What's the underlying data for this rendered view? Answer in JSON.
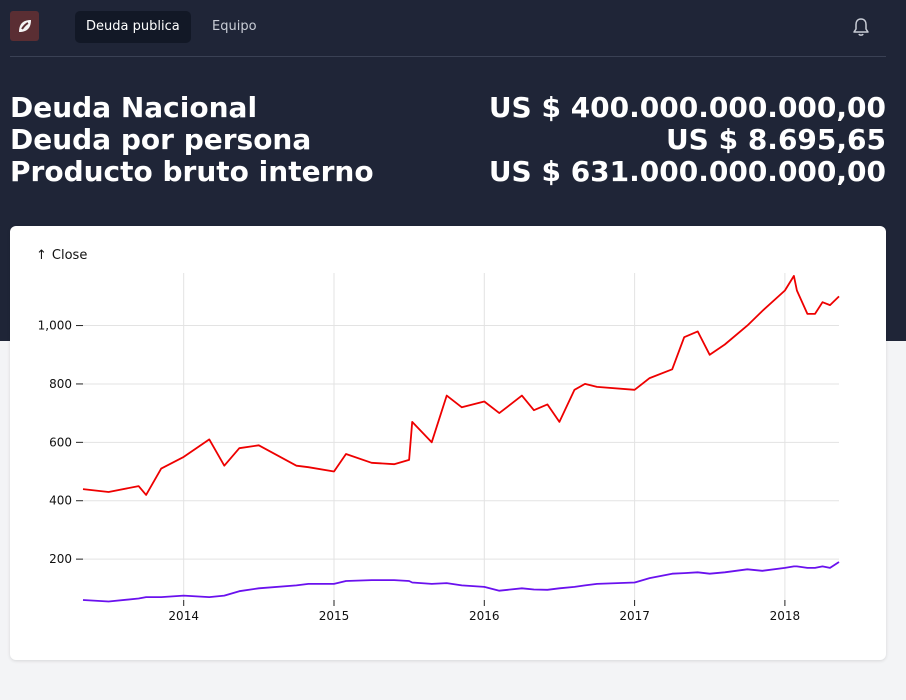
{
  "nav": {
    "logo_icon": "leaf-logo-icon",
    "tabs": [
      {
        "label": "Deuda publica",
        "active": true
      },
      {
        "label": "Equipo",
        "active": false
      }
    ],
    "notification_icon": "bell-icon"
  },
  "stats": [
    {
      "label": "Deuda Nacional",
      "value": "US $ 400.000.000.000,00"
    },
    {
      "label": "Deuda por persona",
      "value": "US $ 8.695,65"
    },
    {
      "label": "Producto bruto interno",
      "value": "US $ 631.000.000.000,00"
    }
  ],
  "colors": {
    "header_bg": "#1f2537",
    "series_1": "#ee0000",
    "series_2": "#6a11ee"
  },
  "chart_card": {
    "close_icon": "arrow-up-icon",
    "close_label": "Close"
  },
  "chart_data": {
    "type": "line",
    "title": "",
    "xlabel": "",
    "ylabel": "Close",
    "xlim": [
      2013.33,
      2018.36
    ],
    "ylim": [
      60,
      1180
    ],
    "x_ticks": [
      2014,
      2015,
      2016,
      2017,
      2018
    ],
    "x_tick_labels": [
      "2014",
      "2015",
      "2016",
      "2017",
      "2018"
    ],
    "y_ticks": [
      200,
      400,
      600,
      800,
      1000
    ],
    "y_tick_labels": [
      "200",
      "400",
      "600",
      "800",
      "1,000"
    ],
    "grid": true,
    "x": [
      2013.33,
      2013.5,
      2013.7,
      2013.75,
      2013.85,
      2014.0,
      2014.17,
      2014.27,
      2014.37,
      2014.5,
      2014.75,
      2014.83,
      2015.0,
      2015.08,
      2015.25,
      2015.4,
      2015.5,
      2015.52,
      2015.65,
      2015.75,
      2015.85,
      2016.0,
      2016.1,
      2016.25,
      2016.33,
      2016.42,
      2016.5,
      2016.6,
      2016.67,
      2016.75,
      2017.0,
      2017.1,
      2017.25,
      2017.33,
      2017.42,
      2017.5,
      2017.6,
      2017.75,
      2017.85,
      2018.0,
      2018.06,
      2018.08,
      2018.15,
      2018.2,
      2018.25,
      2018.3,
      2018.36
    ],
    "series": [
      {
        "values": [
          440,
          430,
          450,
          420,
          510,
          550,
          610,
          520,
          580,
          590,
          520,
          515,
          500,
          560,
          530,
          525,
          540,
          670,
          600,
          760,
          720,
          740,
          700,
          760,
          710,
          730,
          670,
          780,
          800,
          790,
          780,
          820,
          850,
          960,
          980,
          900,
          935,
          1000,
          1050,
          1120,
          1170,
          1120,
          1040,
          1040,
          1080,
          1070,
          1100
        ]
      },
      {
        "values": [
          60,
          55,
          65,
          70,
          70,
          75,
          70,
          75,
          90,
          100,
          110,
          115,
          115,
          125,
          128,
          128,
          125,
          120,
          115,
          118,
          110,
          105,
          92,
          100,
          96,
          95,
          100,
          105,
          110,
          115,
          120,
          135,
          150,
          152,
          155,
          150,
          155,
          165,
          160,
          170,
          175,
          175,
          170,
          170,
          175,
          170,
          190
        ]
      }
    ]
  }
}
